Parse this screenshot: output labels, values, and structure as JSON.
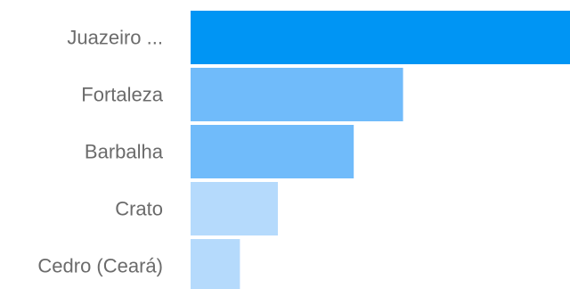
{
  "chart_data": {
    "type": "bar",
    "orientation": "horizontal",
    "categories": [
      "Juazeiro ...",
      "Fortaleza",
      "Barbalha",
      "Crato",
      "Cedro (Ceará)"
    ],
    "values": [
      100,
      56,
      43,
      23,
      13
    ],
    "xlim": [
      0,
      100
    ],
    "title": "",
    "xlabel": "",
    "ylabel": "",
    "grid": false,
    "legend": "none",
    "colors": [
      "#0095f4",
      "#70bbfa",
      "#70bbfa",
      "#b5dafc",
      "#b5dafc"
    ]
  }
}
